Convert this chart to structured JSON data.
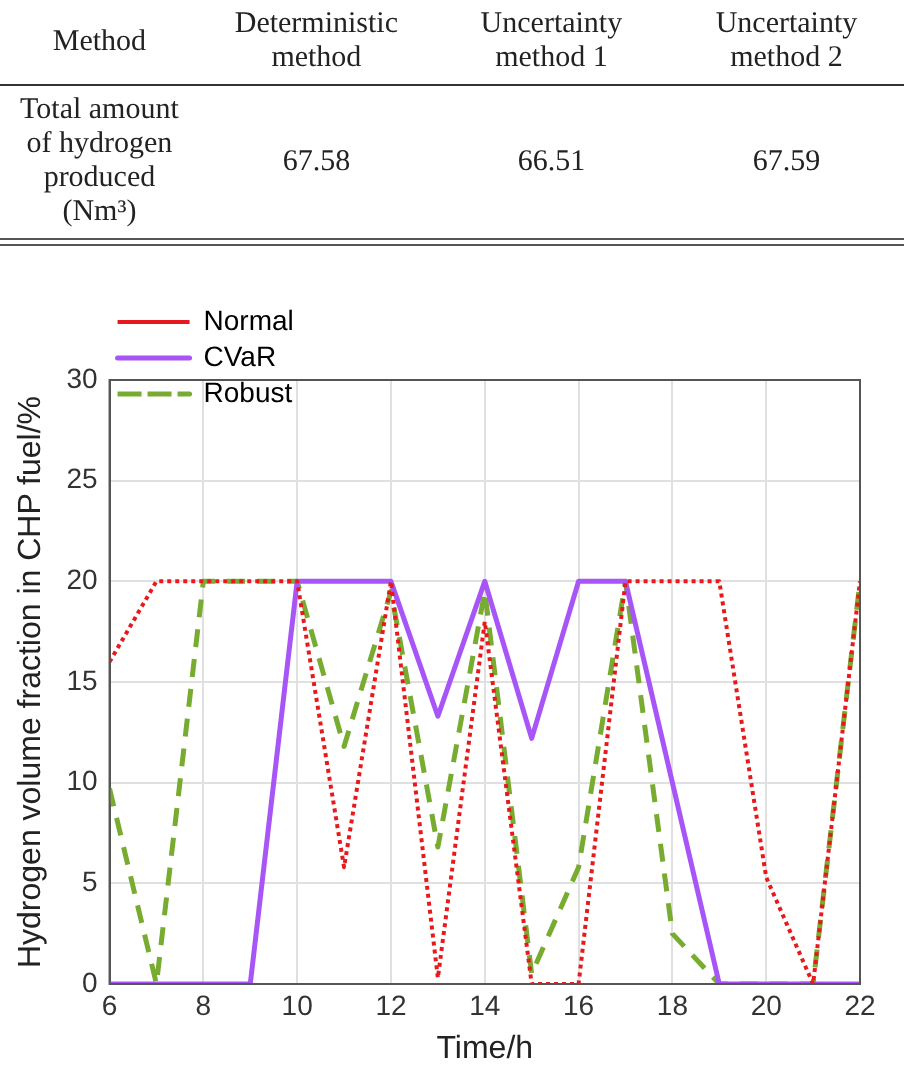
{
  "chart_data": [
    {
      "type": "other",
      "annotations": [
        "Method",
        "Deterministic method",
        "Uncertainty method 1",
        "Uncertainty method 2",
        "Total amount of hydrogen produced (Nm³)",
        "67.58",
        "66.51",
        "67.59"
      ]
    },
    {
      "type": "line",
      "xlabel": "Time/h",
      "ylabel": "Hydrogen volume fraction in CHP fuel/%",
      "x": [
        6,
        7,
        8,
        9,
        10,
        11,
        12,
        13,
        14,
        15,
        16,
        17,
        18,
        19,
        20,
        21,
        22
      ],
      "xlim": [
        6,
        22
      ],
      "xticks": [
        6,
        8,
        10,
        12,
        14,
        16,
        18,
        20,
        22
      ],
      "ylim": [
        0,
        30
      ],
      "yticks": [
        0,
        5,
        10,
        15,
        20,
        25,
        30
      ],
      "grid": true,
      "legend": "top left",
      "marker": "none",
      "series": [
        {
          "name": "Normal",
          "color": "#e8191c",
          "line_style": "dotted",
          "values": [
            16,
            20,
            20,
            20,
            20,
            5.8,
            20,
            0.3,
            18,
            0,
            0,
            20,
            20,
            20,
            5.3,
            0,
            20
          ]
        },
        {
          "name": "CVaR",
          "color": "#a855f7",
          "line_style": "solid",
          "values": [
            0,
            0,
            0,
            0,
            20,
            20,
            20,
            13.3,
            20,
            12.2,
            20,
            20,
            10,
            0,
            0,
            0,
            0
          ]
        },
        {
          "name": "Robust",
          "color": "#77ac30",
          "line_style": "dashed",
          "values": [
            9.7,
            0,
            20,
            20,
            20,
            11.8,
            19.5,
            6.8,
            19.5,
            0.5,
            5.8,
            20,
            2.5,
            0,
            0,
            0,
            20
          ]
        }
      ]
    }
  ]
}
